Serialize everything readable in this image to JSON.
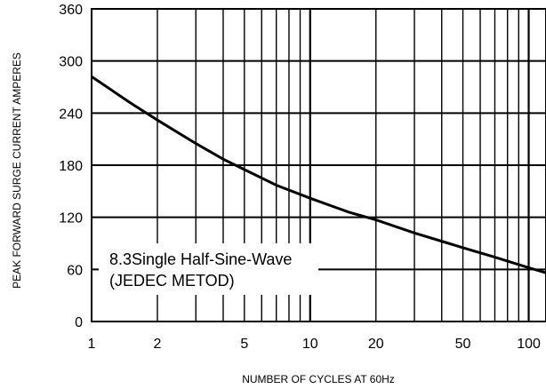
{
  "chart_data": {
    "type": "line",
    "title": "",
    "xlabel": "NUMBER OF CYCLES AT 60Hz",
    "ylabel": "PEAK FORWARD  SURGE CURRENT AMPERES",
    "x_scale": "log",
    "xlim": [
      1,
      120
    ],
    "ylim": [
      0,
      360
    ],
    "x_ticks": [
      1,
      2,
      5,
      10,
      20,
      50,
      100
    ],
    "x_tick_labels": [
      "1",
      "2",
      "5",
      "10",
      "20",
      "50",
      "100"
    ],
    "y_ticks": [
      0,
      60,
      120,
      180,
      240,
      300,
      360
    ],
    "y_tick_labels": [
      "0",
      "60",
      "120",
      "180",
      "240",
      "300",
      "360"
    ],
    "grid": true,
    "annotation": [
      "8.3Single Half-Sine-Wave",
      "(JEDEC METOD)"
    ],
    "series": [
      {
        "x": [
          1,
          1.5,
          2,
          3,
          4,
          5,
          7,
          10,
          15,
          20,
          30,
          50,
          70,
          100,
          120
        ],
        "values": [
          282,
          252,
          232,
          205,
          187,
          175,
          157,
          142,
          126,
          117,
          102,
          85,
          74,
          62,
          56
        ]
      }
    ]
  }
}
